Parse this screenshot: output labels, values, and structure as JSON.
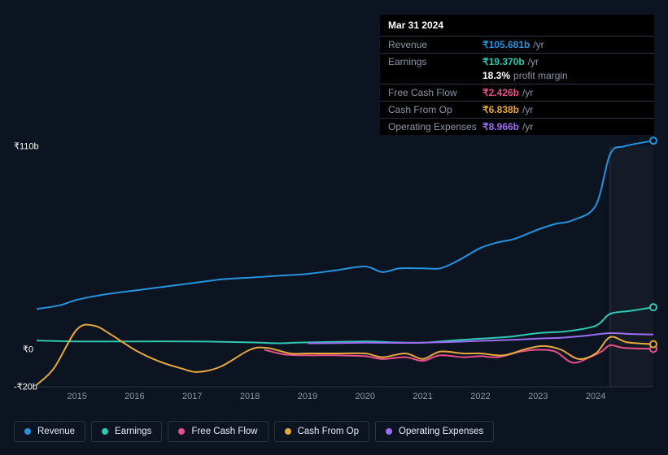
{
  "tooltip": {
    "date": "Mar 31 2024",
    "rows": [
      {
        "label": "Revenue",
        "value": "₹105.681b",
        "unit": "/yr",
        "color": "#2394df"
      },
      {
        "label": "Earnings",
        "value": "₹19.370b",
        "unit": "/yr",
        "color": "#2dc9b3"
      },
      {
        "label": "",
        "value": "18.3%",
        "unit": "profit margin",
        "color": "#ffffff"
      },
      {
        "label": "Free Cash Flow",
        "value": "₹2.426b",
        "unit": "/yr",
        "color": "#e94f8a"
      },
      {
        "label": "Cash From Op",
        "value": "₹6.838b",
        "unit": "/yr",
        "color": "#e7a83b"
      },
      {
        "label": "Operating Expenses",
        "value": "₹8.966b",
        "unit": "/yr",
        "color": "#9b6ef3"
      }
    ]
  },
  "chart": {
    "background_color": "#0d1421",
    "grid_color": "#2a3441",
    "text_color": "#8a96a6",
    "ylim": [
      -20,
      110
    ],
    "y_ticks": [
      {
        "v": 110,
        "label": "₹110b"
      },
      {
        "v": 0,
        "label": "₹0"
      },
      {
        "v": -20,
        "label": "-₹20b"
      }
    ],
    "xlim": [
      2014.3,
      2025.0
    ],
    "x_ticks": [
      2015,
      2016,
      2017,
      2018,
      2019,
      2020,
      2021,
      2022,
      2023,
      2024
    ],
    "highlight_from": 2024.25,
    "marker_x": 2024.25,
    "series": [
      {
        "name": "Revenue",
        "color": "#2394df",
        "points": [
          [
            2014.3,
            22
          ],
          [
            2014.7,
            24
          ],
          [
            2015,
            27
          ],
          [
            2015.5,
            30
          ],
          [
            2016,
            32
          ],
          [
            2016.5,
            34
          ],
          [
            2017,
            36
          ],
          [
            2017.5,
            38
          ],
          [
            2018,
            39
          ],
          [
            2018.5,
            40
          ],
          [
            2019,
            41
          ],
          [
            2019.5,
            43
          ],
          [
            2020,
            45
          ],
          [
            2020.3,
            42
          ],
          [
            2020.6,
            44
          ],
          [
            2021,
            44
          ],
          [
            2021.3,
            44
          ],
          [
            2021.6,
            48
          ],
          [
            2022,
            55
          ],
          [
            2022.3,
            58
          ],
          [
            2022.6,
            60
          ],
          [
            2023,
            65
          ],
          [
            2023.3,
            68
          ],
          [
            2023.6,
            70
          ],
          [
            2024,
            78
          ],
          [
            2024.25,
            105.7
          ],
          [
            2024.5,
            110
          ],
          [
            2025,
            113
          ]
        ],
        "end_marker": [
          2025,
          113
        ]
      },
      {
        "name": "Earnings",
        "color": "#2dc9b3",
        "points": [
          [
            2014.3,
            5
          ],
          [
            2015,
            4.5
          ],
          [
            2016,
            4.5
          ],
          [
            2017,
            4.5
          ],
          [
            2018,
            4
          ],
          [
            2018.5,
            3.5
          ],
          [
            2019,
            4
          ],
          [
            2020,
            4.5
          ],
          [
            2020.5,
            4
          ],
          [
            2021,
            3.8
          ],
          [
            2021.5,
            5
          ],
          [
            2022,
            6
          ],
          [
            2022.5,
            7
          ],
          [
            2023,
            9
          ],
          [
            2023.5,
            10
          ],
          [
            2024,
            13
          ],
          [
            2024.25,
            19.4
          ],
          [
            2024.6,
            21
          ],
          [
            2025,
            23
          ]
        ],
        "end_marker": [
          2025,
          23
        ]
      },
      {
        "name": "Free Cash Flow",
        "color": "#e94f8a",
        "points": [
          [
            2018.25,
            0
          ],
          [
            2018.6,
            -2.5
          ],
          [
            2019,
            -3
          ],
          [
            2019.5,
            -3
          ],
          [
            2020,
            -3.5
          ],
          [
            2020.3,
            -5
          ],
          [
            2020.7,
            -4
          ],
          [
            2021,
            -6
          ],
          [
            2021.3,
            -3
          ],
          [
            2021.7,
            -4
          ],
          [
            2022,
            -3.5
          ],
          [
            2022.3,
            -4
          ],
          [
            2022.7,
            -1
          ],
          [
            2023,
            0
          ],
          [
            2023.3,
            -1
          ],
          [
            2023.6,
            -7
          ],
          [
            2023.9,
            -4
          ],
          [
            2024.1,
            -1
          ],
          [
            2024.25,
            2.4
          ],
          [
            2024.5,
            1
          ],
          [
            2025,
            0.5
          ]
        ],
        "end_marker": [
          2025,
          0.5
        ]
      },
      {
        "name": "Cash From Op",
        "color": "#e7a83b",
        "points": [
          [
            2014.3,
            -19
          ],
          [
            2014.6,
            -10
          ],
          [
            2015,
            11
          ],
          [
            2015.3,
            13
          ],
          [
            2015.6,
            8
          ],
          [
            2016,
            0
          ],
          [
            2016.4,
            -6
          ],
          [
            2016.8,
            -10
          ],
          [
            2017.1,
            -12
          ],
          [
            2017.5,
            -9
          ],
          [
            2018,
            0
          ],
          [
            2018.3,
            1
          ],
          [
            2018.7,
            -2
          ],
          [
            2019,
            -2
          ],
          [
            2019.5,
            -2
          ],
          [
            2020,
            -2
          ],
          [
            2020.3,
            -4
          ],
          [
            2020.7,
            -2
          ],
          [
            2021,
            -5
          ],
          [
            2021.3,
            -1
          ],
          [
            2021.7,
            -2
          ],
          [
            2022,
            -2
          ],
          [
            2022.4,
            -3
          ],
          [
            2022.8,
            0.5
          ],
          [
            2023.1,
            2
          ],
          [
            2023.4,
            0
          ],
          [
            2023.7,
            -5
          ],
          [
            2024,
            -2
          ],
          [
            2024.25,
            6.8
          ],
          [
            2024.55,
            4
          ],
          [
            2025,
            3
          ]
        ],
        "end_marker": [
          2025,
          3
        ]
      },
      {
        "name": "Operating Expenses",
        "color": "#9b6ef3",
        "points": [
          [
            2019,
            3.5
          ],
          [
            2019.5,
            3.6
          ],
          [
            2020,
            3.8
          ],
          [
            2020.5,
            3.7
          ],
          [
            2021,
            3.8
          ],
          [
            2021.5,
            4.2
          ],
          [
            2022,
            4.8
          ],
          [
            2022.5,
            5.3
          ],
          [
            2023,
            6
          ],
          [
            2023.4,
            6.5
          ],
          [
            2023.8,
            7.5
          ],
          [
            2024.25,
            9
          ],
          [
            2024.6,
            8.5
          ],
          [
            2025,
            8.2
          ]
        ],
        "end_marker": null
      }
    ],
    "legend": [
      "Revenue",
      "Earnings",
      "Free Cash Flow",
      "Cash From Op",
      "Operating Expenses"
    ]
  }
}
